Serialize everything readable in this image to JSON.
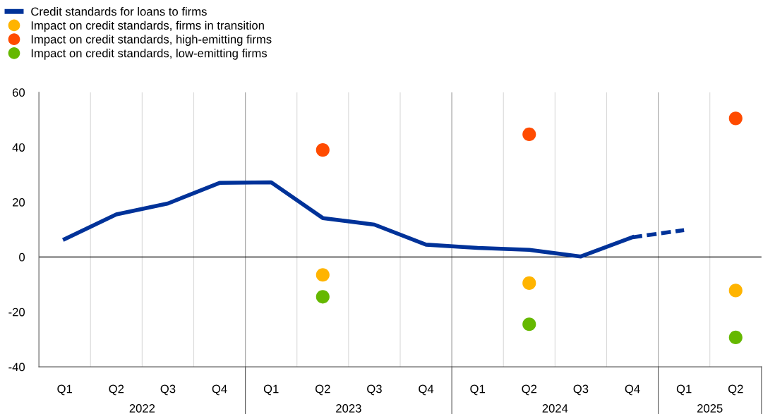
{
  "chart_data": {
    "type": "line",
    "categories": [
      "Q1",
      "Q2",
      "Q3",
      "Q4",
      "Q1",
      "Q2",
      "Q3",
      "Q4",
      "Q1",
      "Q2",
      "Q3",
      "Q4",
      "Q1",
      "Q2"
    ],
    "series": [
      {
        "name": "Credit standards for loans to firms",
        "color": "#003299",
        "line_style": "solid",
        "values": [
          6.5,
          15.5,
          19.5,
          27.0,
          27.2,
          14.2,
          11.8,
          4.5,
          3.3,
          2.6,
          0.2,
          7.2,
          null,
          null
        ]
      },
      {
        "color": "#003299",
        "line_style": "dashed",
        "values": [
          null,
          null,
          null,
          null,
          null,
          null,
          null,
          null,
          null,
          null,
          null,
          7.2,
          9.8,
          null
        ]
      },
      {
        "name": "Impact on credit standards, firms in transition",
        "type": "scatter",
        "color": "#ffb400",
        "marker": "circle",
        "values": [
          null,
          null,
          null,
          null,
          null,
          -6.5,
          null,
          null,
          null,
          -9.5,
          null,
          null,
          null,
          -12.2
        ]
      },
      {
        "name": "Impact on credit standards, high-emitting firms",
        "type": "scatter",
        "color": "#ff4b00",
        "marker": "circle",
        "values": [
          null,
          null,
          null,
          null,
          null,
          39.0,
          null,
          null,
          null,
          44.7,
          null,
          null,
          null,
          50.5
        ]
      },
      {
        "name": "Impact on credit standards, low-emitting firms",
        "type": "scatter",
        "color": "#65b800",
        "marker": "circle",
        "values": [
          null,
          null,
          null,
          null,
          null,
          -14.5,
          null,
          null,
          null,
          -24.5,
          null,
          null,
          null,
          -29.3
        ]
      }
    ],
    "annotations": [
      "2022",
      "2023",
      "2024",
      "2025"
    ],
    "ylim": [
      -40,
      60
    ],
    "yticks": [
      -40,
      -20,
      0,
      20,
      40,
      60
    ],
    "ref_lines": [
      {
        "axis": "y",
        "value": 0,
        "color": "#000000"
      }
    ],
    "grid": "x",
    "legend": "top left"
  }
}
